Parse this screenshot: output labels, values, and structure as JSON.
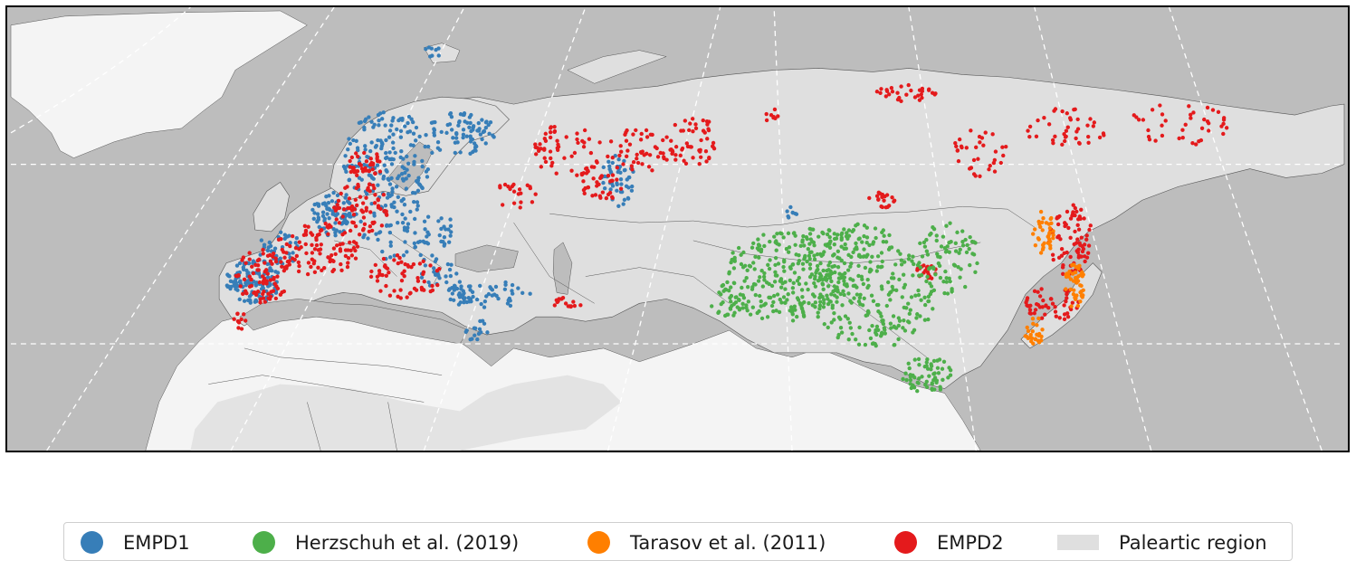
{
  "map": {
    "colors": {
      "ocean": "#bdbdbd",
      "palearctic": "#dfdfdf",
      "other_land": "#f4f4f4",
      "borders": "#555555",
      "graticule": "#ffffff"
    }
  },
  "legend": {
    "items": [
      {
        "label": "EMPD1",
        "color": "#377eb8",
        "shape": "dot"
      },
      {
        "label": "Herzschuh et al. (2019)",
        "color": "#4daf4a",
        "shape": "dot"
      },
      {
        "label": "Tarasov et al. (2011)",
        "color": "#ff7f00",
        "shape": "dot"
      },
      {
        "label": "EMPD2",
        "color": "#e41a1c",
        "shape": "dot"
      },
      {
        "label": "Paleartic region",
        "color": "#dfdfdf",
        "shape": "patch"
      }
    ]
  }
}
